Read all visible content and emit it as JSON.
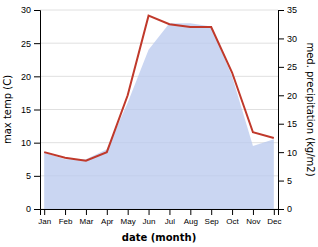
{
  "chart_data": {
    "type": "area",
    "xlabel": "date (month)",
    "ylabel": "max temp (C)",
    "y2label": "med. precipitation (kg/m2)",
    "categories": [
      "Jan",
      "Feb",
      "Mar",
      "Apr",
      "May",
      "Jun",
      "Jul",
      "Aug",
      "Sep",
      "Oct",
      "Nov",
      "Dec"
    ],
    "series": [
      {
        "type": "area",
        "color": "#b8c8ee",
        "values": [
          8.5,
          7.5,
          7.5,
          9.0,
          16.0,
          24.0,
          28.0,
          28.0,
          27.5,
          20.0,
          9.5,
          10.5
        ]
      },
      {
        "type": "line",
        "color": "#c0392b",
        "axis": "y2",
        "values": [
          10.0,
          9.0,
          8.5,
          10.0,
          20.0,
          34.0,
          32.5,
          32.0,
          32.0,
          24.0,
          13.5,
          12.5
        ]
      }
    ],
    "ylim": [
      0,
      30
    ],
    "yticks": [
      0,
      5,
      10,
      15,
      20,
      25,
      30
    ],
    "y2lim": [
      0,
      35
    ],
    "y2ticks": [
      0,
      5,
      10,
      15,
      20,
      25,
      30,
      35
    ],
    "grid": true
  }
}
